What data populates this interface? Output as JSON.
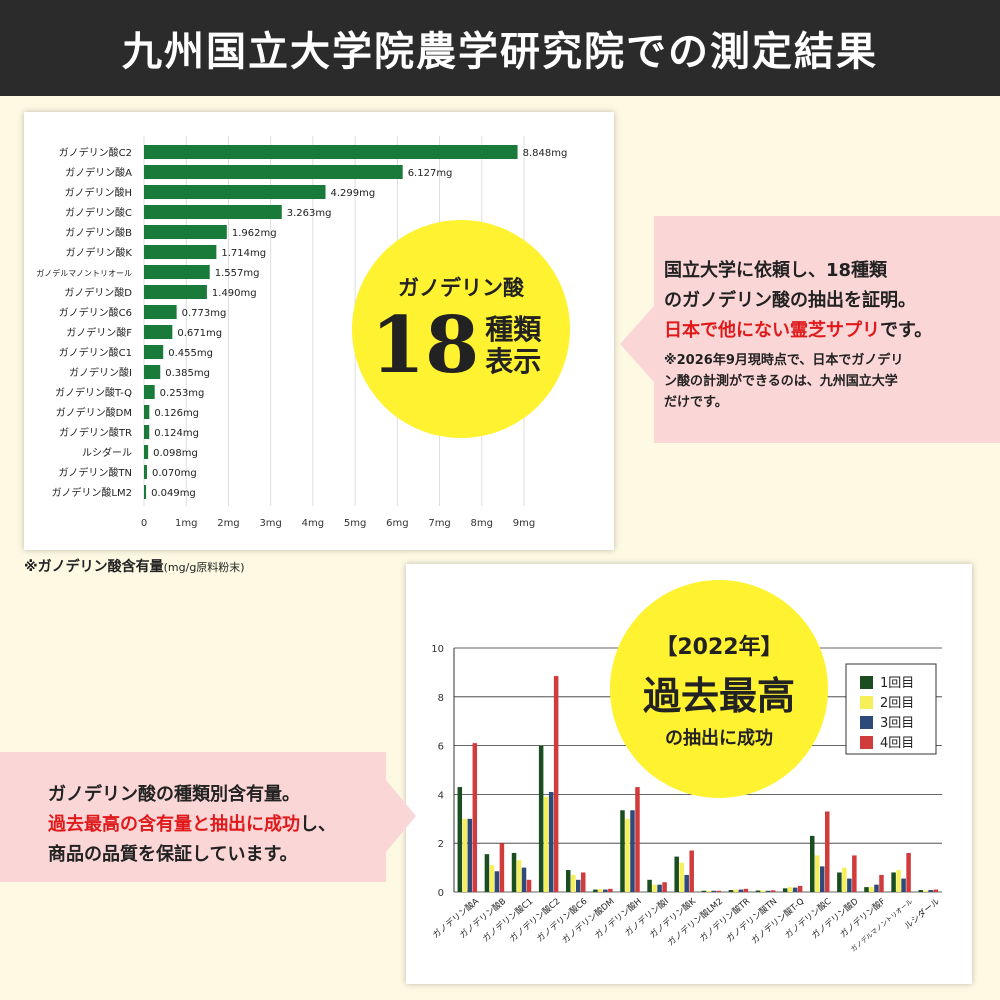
{
  "header": {
    "title": "九州国立大学院農学研究院での測定結果"
  },
  "hbar_note": {
    "main": "※ガノデリン酸含有量",
    "sub": "(mg/g原料粉末)"
  },
  "circle_18": {
    "top": "ガノデリン酸",
    "num": "18",
    "kind": "種類表示"
  },
  "right_box": {
    "line1": "国立大学に依頼し、18種類",
    "line2": "のガノデリン酸の抽出を証明。",
    "line3_red": "日本で他にない霊芝サプリ",
    "line3_rest": "です。",
    "note1": "※2026年9月現時点で、日本でガノデリ",
    "note2": "ン酸の計測ができるのは、九州国立大学",
    "note3": "だけです。"
  },
  "left_box": {
    "line1": "ガノデリン酸の種類別含有量。",
    "line2_red": "過去最高の含有量と抽出に成功",
    "line2_rest": "し、",
    "line3": "商品の品質を保証しています。"
  },
  "circle_2022": {
    "c1": "【2022年】",
    "c2": "過去最高",
    "c3": "の抽出に成功"
  },
  "chart_data": [
    {
      "type": "bar",
      "orientation": "horizontal",
      "color": "#1a7a3a",
      "categories": [
        "ガノデリン酸C2",
        "ガノデリン酸A",
        "ガノデリン酸H",
        "ガノデリン酸C",
        "ガノデリン酸B",
        "ガノデリン酸K",
        "ガノデルマノントリオール",
        "ガノデリン酸D",
        "ガノデリン酸C6",
        "ガノデリン酸F",
        "ガノデリン酸C1",
        "ガノデリン酸I",
        "ガノデリン酸T-Q",
        "ガノデリン酸DM",
        "ガノデリン酸TR",
        "ルシダール",
        "ガノデリン酸TN",
        "ガノデリン酸LM2"
      ],
      "values": [
        8.848,
        6.127,
        4.299,
        3.263,
        1.962,
        1.714,
        1.557,
        1.49,
        0.773,
        0.671,
        0.455,
        0.385,
        0.253,
        0.126,
        0.124,
        0.098,
        0.07,
        0.049
      ],
      "value_labels": [
        "8.848mg",
        "6.127mg",
        "4.299mg",
        "3.263mg",
        "1.962mg",
        "1.714mg",
        "1.557mg",
        "1.490mg",
        "0.773mg",
        "0.671mg",
        "0.455mg",
        "0.385mg",
        "0.253mg",
        "0.126mg",
        "0.124mg",
        "0.098mg",
        "0.070mg",
        "0.049mg"
      ],
      "ticks": [
        "0",
        "1mg",
        "2mg",
        "3mg",
        "4mg",
        "5mg",
        "6mg",
        "7mg",
        "8mg",
        "9mg"
      ],
      "xlim": [
        0,
        9
      ],
      "grid": true
    },
    {
      "type": "bar",
      "orientation": "vertical",
      "categories": [
        "ガノデリン酸A",
        "ガノデリン酸B",
        "ガノデリン酸C1",
        "ガノデリン酸C2",
        "ガノデリン酸C6",
        "ガノデリン酸DM",
        "ガノデリン酸H",
        "ガノデリン酸I",
        "ガノデリン酸K",
        "ガノデリン酸LM2",
        "ガノデリン酸TR",
        "ガノデリン酸TN",
        "ガノデリン酸T-Q",
        "ガノデリン酸C",
        "ガノデリン酸D",
        "ガノデリン酸F",
        "ガノデルマノントリオール",
        "ルシダール"
      ],
      "series": [
        {
          "name": "1回目",
          "color": "#1a4d1f",
          "values": [
            4.3,
            1.55,
            1.6,
            6.0,
            0.9,
            0.1,
            3.35,
            0.5,
            1.45,
            0.05,
            0.08,
            0.06,
            0.15,
            2.3,
            0.8,
            0.2,
            0.8,
            0.08
          ]
        },
        {
          "name": "2回目",
          "color": "#f5ef5a",
          "values": [
            3.0,
            1.1,
            1.3,
            3.9,
            0.7,
            0.12,
            3.0,
            0.3,
            1.2,
            0.05,
            0.1,
            0.06,
            0.2,
            1.5,
            1.0,
            0.2,
            0.9,
            0.06
          ]
        },
        {
          "name": "3回目",
          "color": "#2e4a7a",
          "values": [
            3.0,
            0.85,
            1.0,
            4.1,
            0.5,
            0.1,
            3.35,
            0.3,
            0.7,
            0.05,
            0.1,
            0.05,
            0.18,
            1.05,
            0.55,
            0.3,
            0.55,
            0.08
          ]
        },
        {
          "name": "4回目",
          "color": "#d23b3b",
          "values": [
            6.1,
            2.0,
            0.5,
            8.85,
            0.8,
            0.13,
            4.3,
            0.4,
            1.7,
            0.05,
            0.13,
            0.07,
            0.25,
            3.3,
            1.5,
            0.7,
            1.6,
            0.1
          ]
        }
      ],
      "ylim": [
        0,
        10
      ],
      "yticks": [
        0,
        2,
        4,
        6,
        8,
        10
      ],
      "grid": true,
      "legend": "top-right"
    }
  ]
}
